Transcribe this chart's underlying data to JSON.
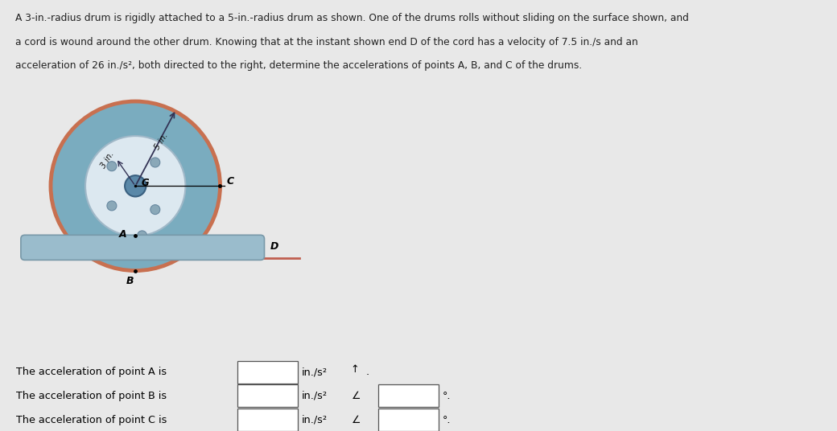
{
  "bg_color": "#e8e8e8",
  "title_text_line1": "A 3-in.-radius drum is rigidly attached to a 5-in.-radius drum as shown. One of the drums rolls without sliding on the surface shown, and",
  "title_text_line2": "a cord is wound around the other drum. Knowing that at the instant shown end D of the cord has a velocity of 7.5 in./s and an",
  "title_text_line3": "acceleration of 26 in./s², both directed to the right, determine the accelerations of points A, B, and C of the drums.",
  "diagram_bg": "#8bbccc",
  "outer_drum_fill": "#7aacbf",
  "outer_drum_edge": "#c87050",
  "outer_drum_r": 0.88,
  "inner_disk_fill": "#dce8f0",
  "inner_disk_edge": "#a0b8c8",
  "inner_disk_r": 0.52,
  "hub_fill": "#5a88a8",
  "hub_edge": "#3a6080",
  "hub_r": 0.11,
  "bolt_r": 0.05,
  "bolt_color": "#8aA8b8",
  "bolt_edge": "#6888a0",
  "bolt_angles_deg": [
    50,
    140,
    220,
    310
  ],
  "bolt_dist": 0.32,
  "label_G": "G",
  "label_A": "A",
  "label_B": "B",
  "label_C": "C",
  "label_D": "D",
  "label_3in": "3 in.",
  "label_5in": "5 in.",
  "rod_fill": "#9abccc",
  "rod_edge": "#7898a8",
  "cord_color": "#c06050",
  "answer_line1": "The acceleration of point A is",
  "answer_line2": "The acceleration of point B is",
  "answer_line3": "The acceleration of point C is"
}
